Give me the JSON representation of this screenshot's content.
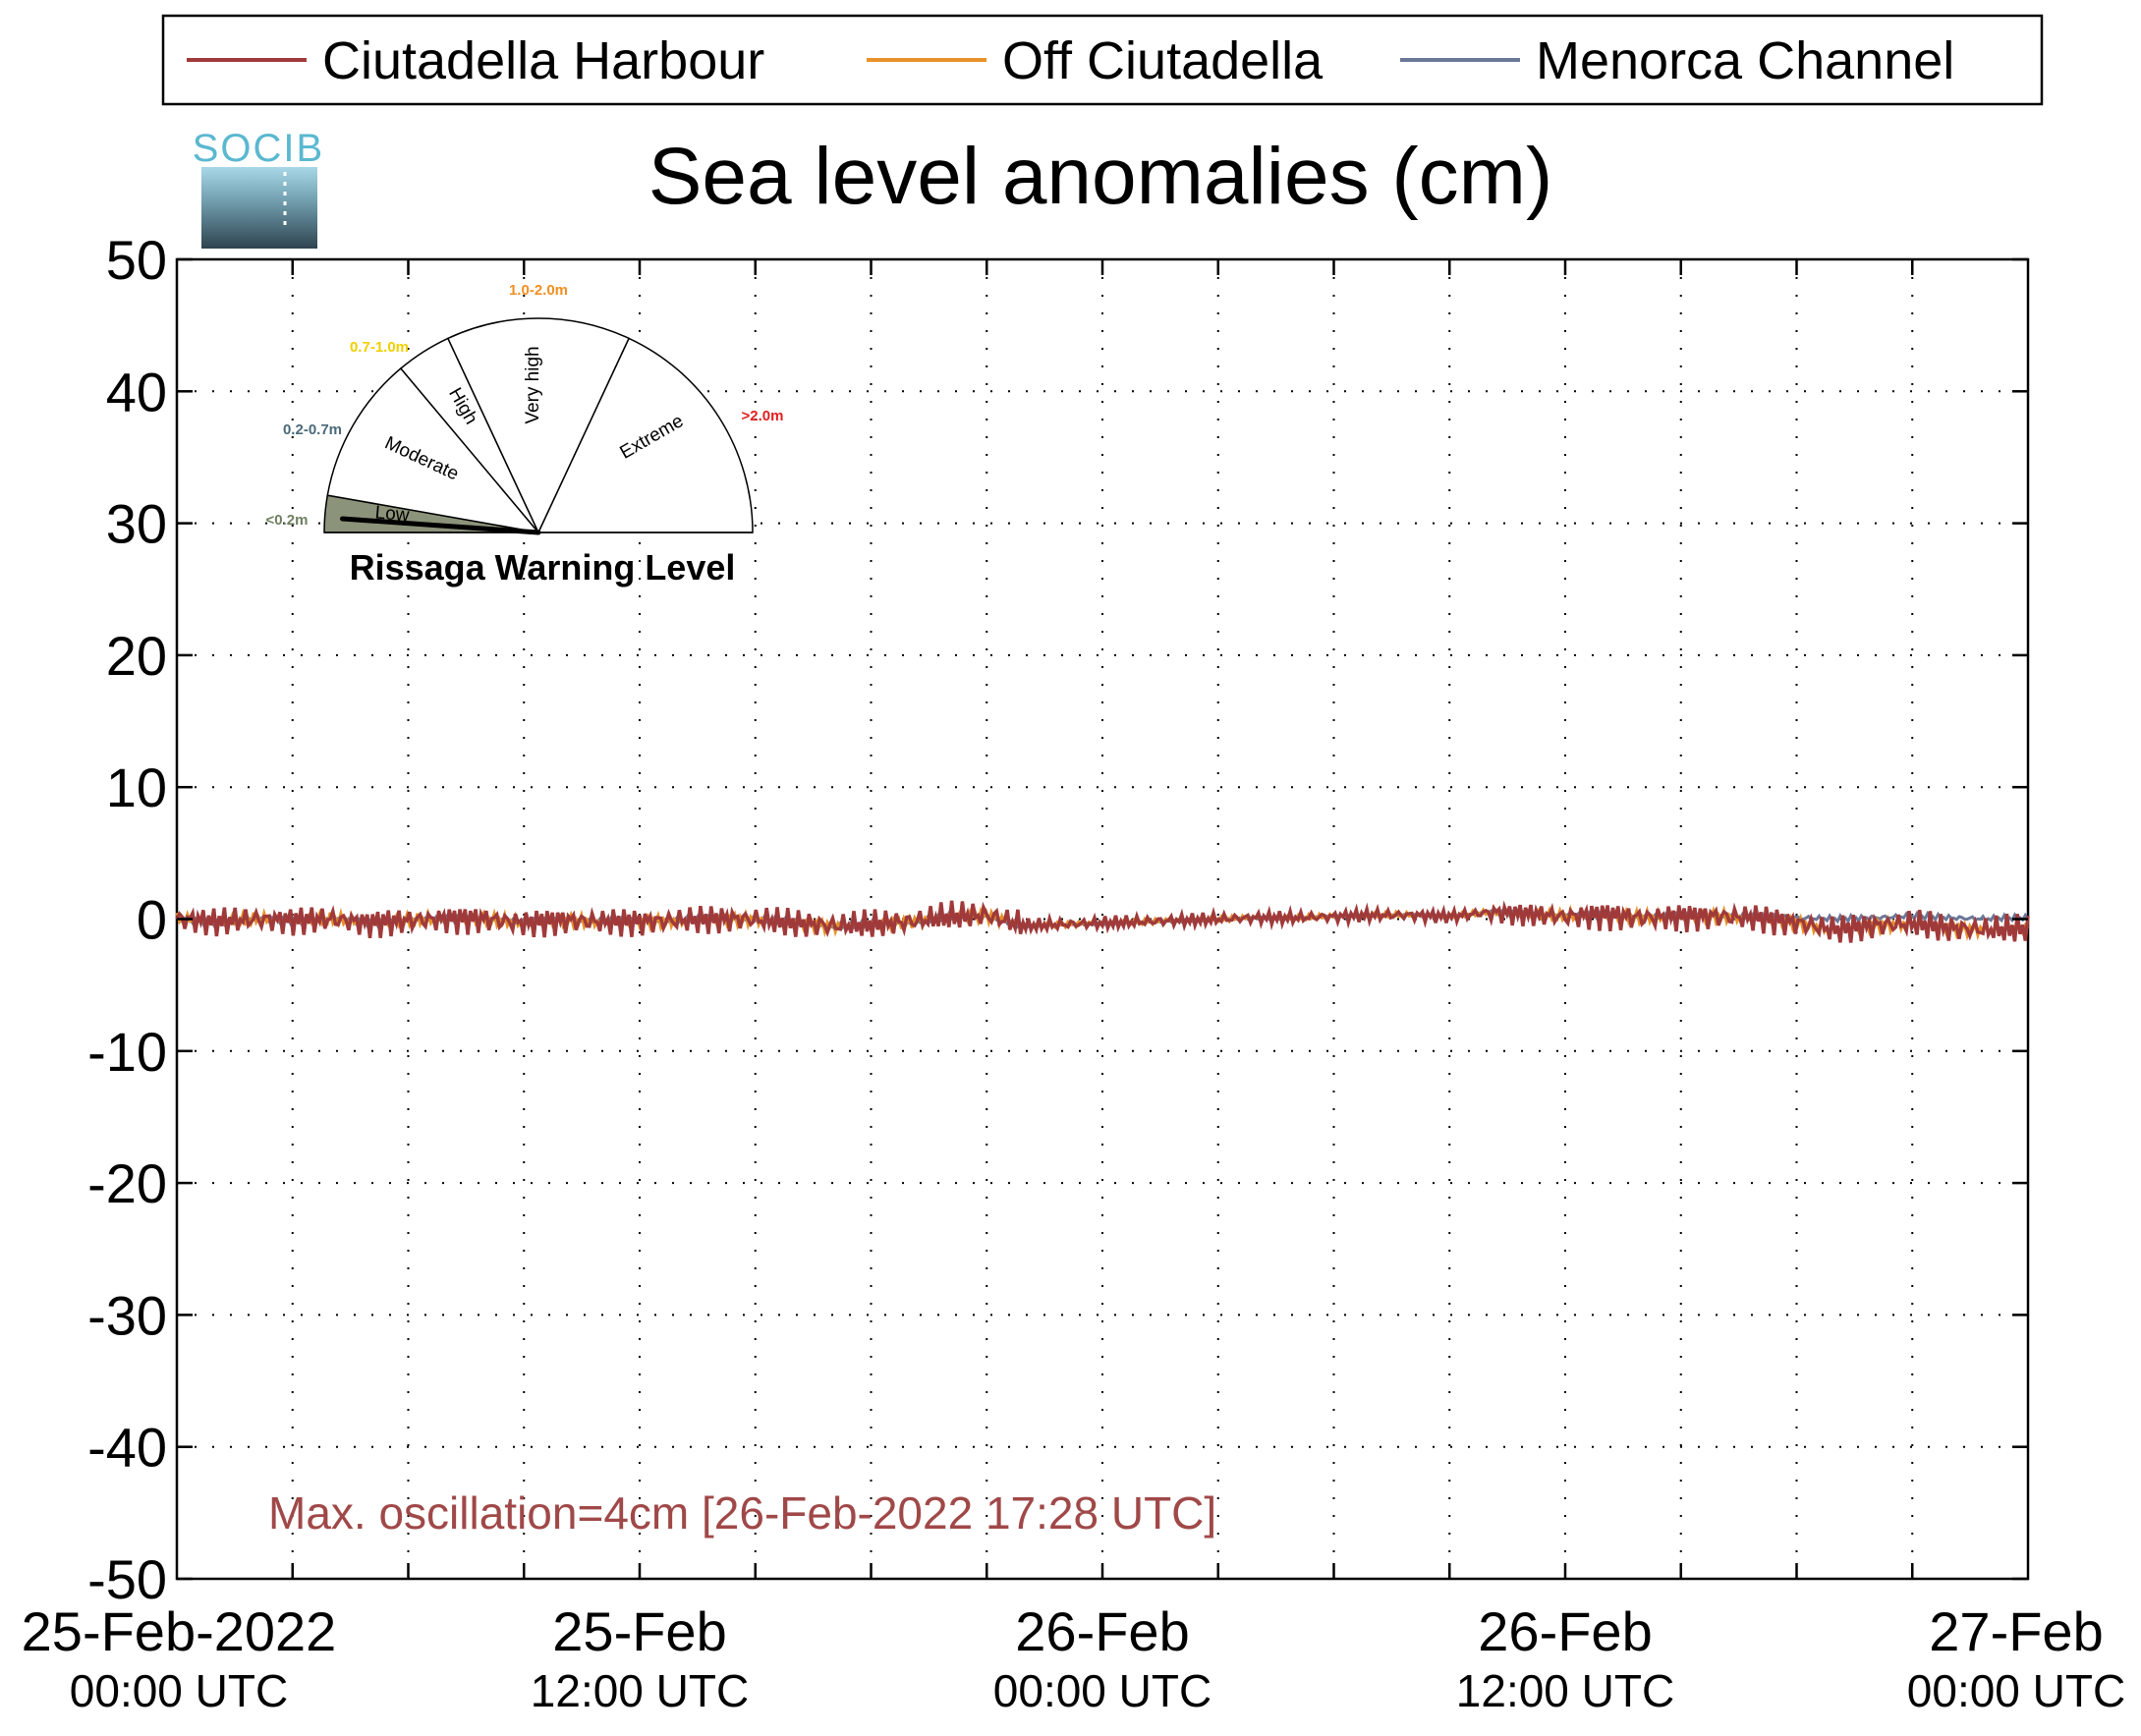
{
  "chart_data": {
    "type": "line",
    "title": "Sea level anomalies (cm)",
    "logo_text": "SOCIB",
    "ylim": [
      -50,
      50
    ],
    "yticks": [
      50,
      40,
      30,
      20,
      10,
      0,
      -10,
      -20,
      -30,
      -40,
      -50
    ],
    "ytick_labels": [
      "50",
      "40",
      "30",
      "20",
      "10",
      "0",
      "-10",
      "-20",
      "-30",
      "-40",
      "-50"
    ],
    "xlim_hours": [
      0,
      48
    ],
    "xticks": [
      {
        "hour": 0,
        "line1": "25-Feb-2022",
        "line2": "00:00 UTC"
      },
      {
        "hour": 12,
        "line1": "25-Feb",
        "line2": "12:00 UTC"
      },
      {
        "hour": 24,
        "line1": "26-Feb",
        "line2": "00:00 UTC"
      },
      {
        "hour": 36,
        "line1": "26-Feb",
        "line2": "12:00 UTC"
      },
      {
        "hour": 48,
        "line1": "27-Feb",
        "line2": "00:00 UTC"
      }
    ],
    "grid": true,
    "legend_position": "top",
    "series": [
      {
        "name": "Ciutadella Harbour",
        "color": "#a03a3a",
        "x_hours": [
          0,
          1,
          2,
          3,
          4,
          5,
          6,
          7,
          8,
          9,
          10,
          11,
          12,
          13,
          14,
          15,
          16,
          17,
          18,
          19,
          20,
          21,
          22,
          23,
          24,
          25,
          26,
          27,
          28,
          29,
          30,
          31,
          32,
          33,
          34,
          35,
          36,
          37,
          38,
          39,
          40,
          41,
          42,
          43,
          44,
          45,
          46,
          47,
          48
        ],
        "values": [
          0.0,
          -0.2,
          0.0,
          -0.1,
          0.0,
          -0.3,
          -0.1,
          0.0,
          0.0,
          -0.3,
          -0.1,
          -0.2,
          -0.2,
          -0.1,
          0.0,
          0.0,
          -0.3,
          -0.5,
          -0.4,
          -0.2,
          0.2,
          0.3,
          -0.5,
          -0.4,
          -0.3,
          -0.2,
          -0.1,
          0.0,
          0.1,
          0.1,
          0.2,
          0.3,
          0.3,
          0.2,
          0.5,
          0.4,
          0.2,
          0.3,
          0.1,
          0.2,
          0.2,
          0.1,
          -0.3,
          -0.8,
          -0.5,
          -0.3,
          -0.7,
          -0.8,
          -0.7
        ],
        "oscillation": 1.2
      },
      {
        "name": "Off Ciutadella",
        "color": "#e8912a",
        "x_hours": [
          0,
          1,
          2,
          3,
          4,
          5,
          6,
          7,
          8,
          9,
          10,
          11,
          12,
          13,
          14,
          15,
          16,
          17,
          18,
          19,
          20,
          21,
          22,
          23,
          24,
          25,
          26,
          27,
          28,
          29,
          30,
          31,
          32,
          33,
          34,
          35,
          36,
          37,
          38,
          39,
          40,
          41,
          42,
          43,
          44,
          45,
          46,
          47,
          48
        ],
        "values": [
          0.0,
          -0.2,
          0.0,
          -0.1,
          0.0,
          -0.3,
          -0.1,
          0.0,
          0.0,
          -0.3,
          -0.1,
          -0.2,
          -0.2,
          -0.1,
          0.0,
          0.0,
          -0.3,
          -0.5,
          -0.4,
          -0.2,
          0.2,
          0.3,
          -0.5,
          -0.4,
          -0.3,
          -0.2,
          -0.1,
          0.0,
          0.1,
          0.1,
          0.2,
          0.3,
          0.3,
          0.2,
          0.5,
          0.4,
          0.2,
          0.3,
          0.1,
          0.2,
          0.2,
          0.1,
          -0.3,
          -0.8,
          -0.5,
          -0.3,
          -0.7,
          -0.8,
          -0.7
        ],
        "oscillation": 0.5
      },
      {
        "name": "Menorca Channel",
        "color": "#6c7898",
        "x_hours": [
          0,
          1,
          2,
          3,
          4,
          5,
          6,
          7,
          8,
          9,
          10,
          11,
          12,
          13,
          14,
          15,
          16,
          17,
          18,
          19,
          20,
          21,
          22,
          23,
          24,
          25,
          26,
          27,
          28,
          29,
          30,
          31,
          32,
          33,
          34,
          35,
          36,
          37,
          38,
          39,
          40,
          41,
          42,
          43,
          44,
          45,
          46,
          47,
          48
        ],
        "values": [
          0.0,
          -0.2,
          0.0,
          -0.1,
          0.0,
          -0.3,
          -0.1,
          0.0,
          0.0,
          -0.3,
          -0.1,
          -0.2,
          -0.2,
          -0.1,
          0.0,
          0.0,
          -0.3,
          -0.5,
          -0.4,
          -0.2,
          0.2,
          0.3,
          -0.5,
          -0.4,
          -0.3,
          -0.2,
          -0.1,
          0.0,
          0.1,
          0.1,
          0.2,
          0.3,
          0.3,
          0.2,
          0.5,
          0.4,
          0.2,
          0.3,
          0.1,
          0.2,
          0.2,
          0.1,
          0.1,
          0.0,
          0.1,
          0.2,
          0.1,
          0.0,
          0.1
        ],
        "oscillation": 0.25
      }
    ],
    "annotation": "Max. oscillation=4cm [26-Feb-2022 17:28 UTC]",
    "annotation_color": "#a04848",
    "gauge": {
      "title": "Rissaga Warning Level",
      "sectors": [
        {
          "label": "Low",
          "range": "<0.2m",
          "range_color": "#6e8060",
          "fill": "#8b937a"
        },
        {
          "label": "Moderate",
          "range": "0.2-0.7m",
          "range_color": "#4a6a7a",
          "fill": "#ffffff"
        },
        {
          "label": "High",
          "range": "0.7-1.0m",
          "range_color": "#f0d000",
          "fill": "#ffffff"
        },
        {
          "label": "Very high",
          "range": "1.0-2.0m",
          "range_color": "#f09020",
          "fill": "#ffffff"
        },
        {
          "label": "Extreme",
          "range": ">2.0m",
          "range_color": "#e02020",
          "fill": "#ffffff"
        }
      ],
      "needle_level": "Low"
    }
  }
}
